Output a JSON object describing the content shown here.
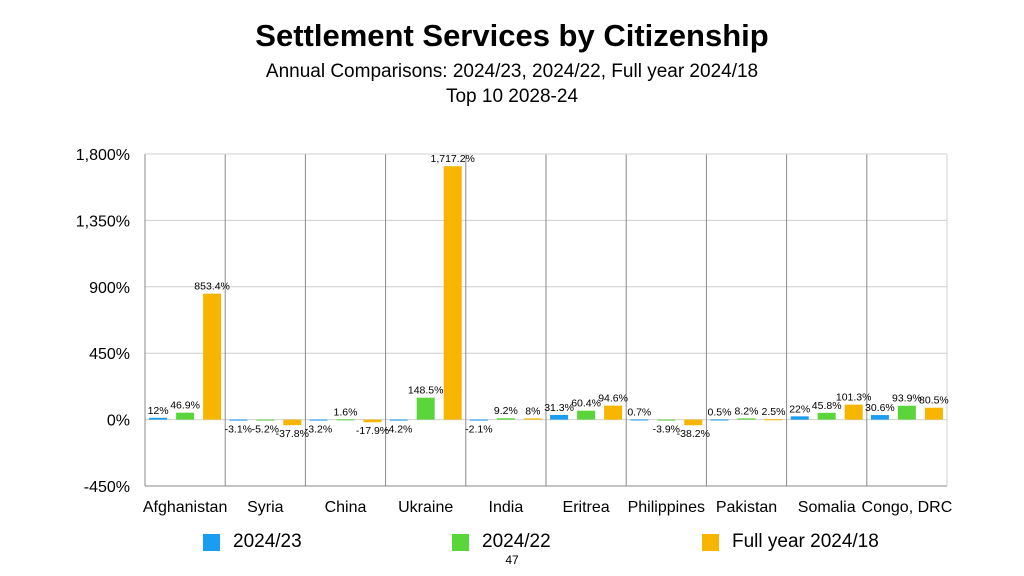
{
  "slide": {
    "title": "Settlement Services by Citizenship",
    "subtitle_line1": "Annual Comparisons: 2024/23, 2024/22, Full year 2024/18",
    "subtitle_line2": "Top 10 2028-24",
    "page_number": "47"
  },
  "chart_data": {
    "type": "bar",
    "title": "Settlement Services by Citizenship",
    "categories": [
      "Afghanistan",
      "Syria",
      "China",
      "Ukraine",
      "India",
      "Eritrea",
      "Philippines",
      "Pakistan",
      "Somalia",
      "Congo, DRC"
    ],
    "series": [
      {
        "name": "2024/23",
        "color": "#1a9cf0",
        "values": [
          12,
          -3.1,
          -3.2,
          -4.2,
          -2.1,
          31.3,
          0.7,
          0.5,
          22,
          30.6
        ],
        "labels": [
          "12%",
          "-3.1%",
          "-3.2%",
          "-4.2%",
          "-2.1%",
          "31.3%",
          "0.7%",
          "0.5%",
          "22%",
          "30.6%"
        ]
      },
      {
        "name": "2024/22",
        "color": "#5bd63a",
        "values": [
          46.9,
          -5.2,
          1.6,
          148.5,
          9.2,
          60.4,
          -3.9,
          8.2,
          45.8,
          93.9
        ],
        "labels": [
          "46.9%",
          "-5.2%",
          "1.6%",
          "148.5%",
          "9.2%",
          "60.4%",
          "-3.9%",
          "8.2%",
          "45.8%",
          "93.9%"
        ]
      },
      {
        "name": "Full year 2024/18",
        "color": "#f7b500",
        "values": [
          853.4,
          -37.8,
          -17.9,
          1717.2,
          8,
          94.6,
          -38.2,
          2.5,
          101.3,
          80.5
        ],
        "labels": [
          "853.4%",
          "-37.8%",
          "-17.9%",
          "1,717.2%",
          "8%",
          "94.6%",
          "-38.2%",
          "2.5%",
          "101.3%",
          "80.5%"
        ]
      }
    ],
    "ylim": [
      -450,
      1800
    ],
    "yticks": [
      -450,
      0,
      450,
      900,
      1350,
      1800
    ],
    "ytick_labels": [
      "-450%",
      "0%",
      "450%",
      "900%",
      "1,350%",
      "1,800%"
    ],
    "grid": true,
    "legend_position": "bottom"
  }
}
